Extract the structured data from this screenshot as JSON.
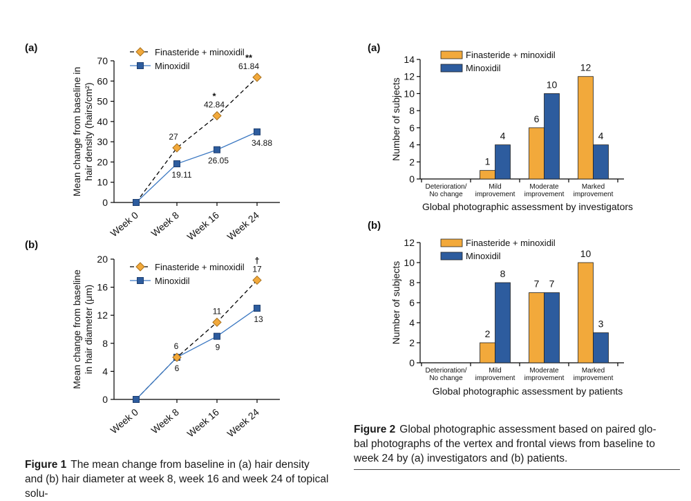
{
  "colors": {
    "orange": "#F2A93B",
    "blue": "#2D5C9E",
    "blueLine": "#3B78C2",
    "axis": "#000000"
  },
  "chart_data": [
    {
      "panel": "(a)",
      "type": "line",
      "categories": [
        "Week 0",
        "Week 8",
        "Week 16",
        "Week 24"
      ],
      "ylabel": [
        "Mean change from baseline in",
        "hair density (hairs/cm²)"
      ],
      "ylim": [
        0,
        70
      ],
      "yticks": [
        0,
        10,
        20,
        30,
        40,
        50,
        60,
        70
      ],
      "series": [
        {
          "name": "Finasteride + minoxidil",
          "marker": "diamond",
          "dashed": true,
          "values": [
            0,
            27,
            42.84,
            61.84
          ],
          "labels": [
            "",
            "27",
            "42.84",
            "61.84"
          ],
          "marks": [
            "",
            "",
            "*",
            "**"
          ]
        },
        {
          "name": "Minoxidil",
          "marker": "square",
          "dashed": false,
          "values": [
            0,
            19.11,
            26.05,
            34.88
          ],
          "labels": [
            "",
            "19.11",
            "26.05",
            "34.88"
          ]
        }
      ]
    },
    {
      "panel": "(b)",
      "type": "line",
      "categories": [
        "Week 0",
        "Week 8",
        "Week 16",
        "Week 24"
      ],
      "ylabel": [
        "Mean change from baseline",
        "in hair diameter (μm)"
      ],
      "ylim": [
        0,
        20
      ],
      "yticks": [
        0,
        4,
        8,
        12,
        16,
        20
      ],
      "series": [
        {
          "name": "Finasteride + minoxidil",
          "marker": "diamond",
          "dashed": true,
          "values": [
            0,
            6,
            11,
            17
          ],
          "labels": [
            "",
            "6",
            "11",
            "17"
          ],
          "marks": [
            "",
            "",
            "",
            "†"
          ]
        },
        {
          "name": "Minoxidil",
          "marker": "square",
          "dashed": false,
          "values": [
            0,
            6,
            9,
            13
          ],
          "labels": [
            "",
            "6",
            "9",
            "13"
          ]
        }
      ]
    },
    {
      "panel": "(a)",
      "type": "bar",
      "categories": [
        [
          "Deterioration/",
          "No change"
        ],
        [
          "Mild",
          "improvement"
        ],
        [
          "Moderate",
          "improvement"
        ],
        [
          "Marked",
          "improvement"
        ]
      ],
      "xlabel": "Global photographic assessment by investigators",
      "ylabel": "Number of subjects",
      "ylim": [
        0,
        14
      ],
      "yticks": [
        0,
        2,
        4,
        6,
        8,
        10,
        12,
        14
      ],
      "series": [
        {
          "name": "Finasteride + minoxidil",
          "values": [
            0,
            1,
            6,
            12
          ]
        },
        {
          "name": "Minoxidil",
          "values": [
            0,
            4,
            10,
            4
          ]
        }
      ]
    },
    {
      "panel": "(b)",
      "type": "bar",
      "categories": [
        [
          "Deterioration/",
          "No change"
        ],
        [
          "Mild",
          "improvement"
        ],
        [
          "Moderate",
          "improvement"
        ],
        [
          "Marked",
          "improvement"
        ]
      ],
      "xlabel": "Global photographic assessment by patients",
      "ylabel": "Number of subjects",
      "ylim": [
        0,
        12
      ],
      "yticks": [
        0,
        2,
        4,
        6,
        8,
        10,
        12
      ],
      "series": [
        {
          "name": "Finasteride + minoxidil",
          "values": [
            0,
            2,
            7,
            10
          ]
        },
        {
          "name": "Minoxidil",
          "values": [
            0,
            8,
            7,
            3
          ]
        }
      ]
    }
  ],
  "captions": {
    "figure1": {
      "label": "Figure 1",
      "text": "The mean change from baseline in (a) hair density and (b) hair diameter at week 8, week 16 and week 24 of topical solu-"
    },
    "figure2": {
      "label": "Figure 2",
      "text": "Global photographic assessment based on paired glo- bal photographs of the vertex and frontal views from baseline to week 24 by (a) investigators and (b) patients."
    }
  }
}
